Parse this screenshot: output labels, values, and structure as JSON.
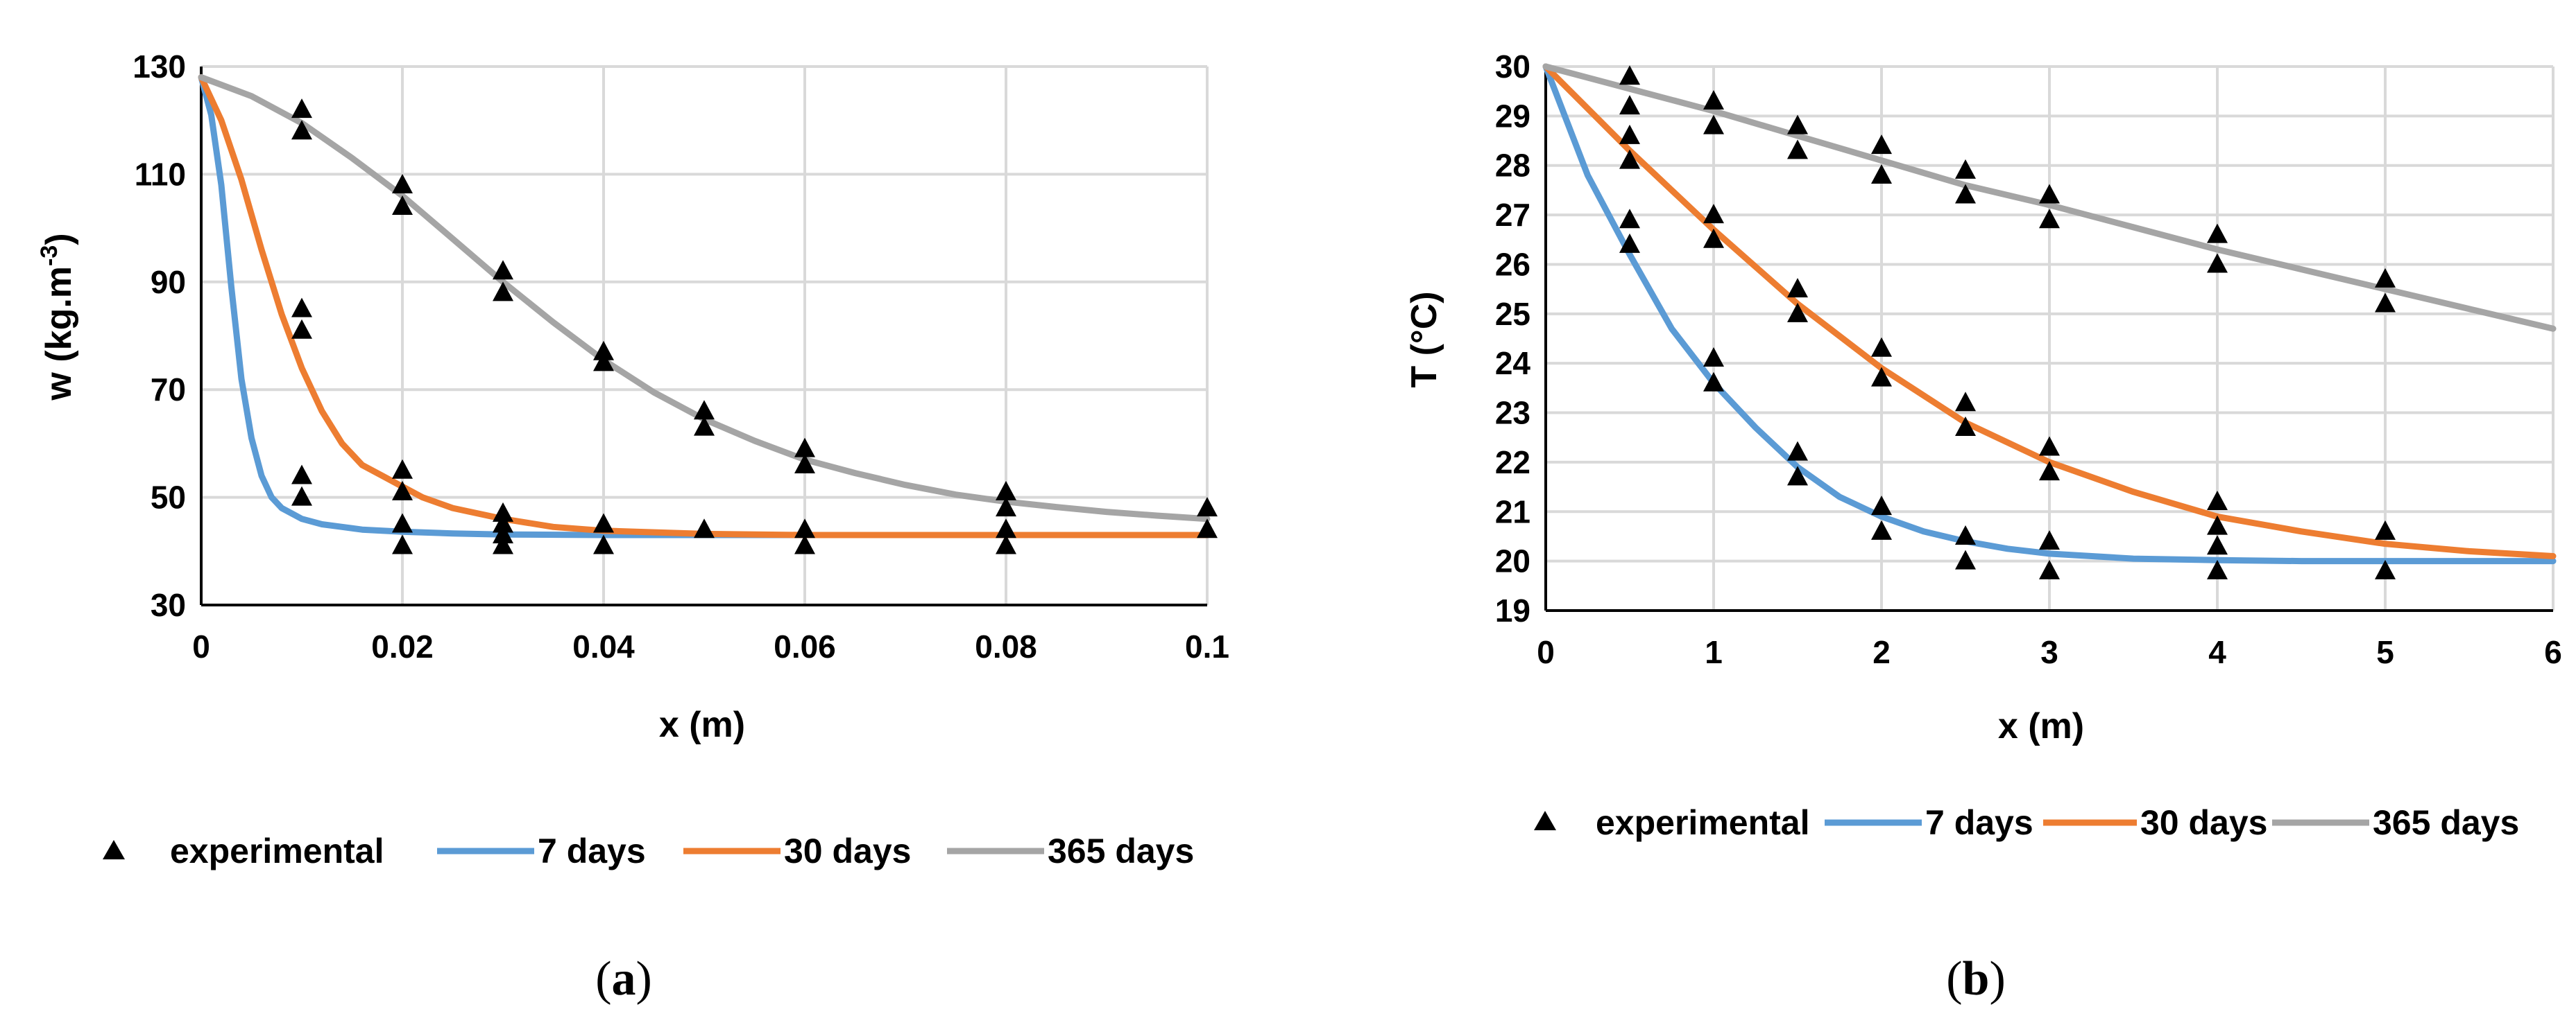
{
  "chart_data": [
    {
      "type": "line",
      "panel": "a",
      "caption": "(a)",
      "caption_letter": "a",
      "xlabel": "x (m)",
      "ylabel_main": "w (kg.m",
      "ylabel_sup": "-3",
      "ylabel_end": ")",
      "xlim": [
        0,
        0.1
      ],
      "ylim": [
        30,
        130
      ],
      "xticks": [
        0,
        0.02,
        0.04,
        0.06,
        0.08,
        0.1
      ],
      "xtick_labels": [
        "0",
        "0.02",
        "0.04",
        "0.06",
        "0.08",
        "0.1"
      ],
      "yticks": [
        30,
        50,
        70,
        90,
        110,
        130
      ],
      "ytick_labels": [
        "30",
        "50",
        "70",
        "90",
        "110",
        "130"
      ],
      "grid": true,
      "legend_position": "bottom",
      "series": [
        {
          "name": "7 days",
          "color": "#5b9bd5",
          "x": [
            0,
            0.001,
            0.002,
            0.003,
            0.004,
            0.005,
            0.006,
            0.007,
            0.008,
            0.009,
            0.01,
            0.012,
            0.014,
            0.016,
            0.018,
            0.02,
            0.025,
            0.03,
            0.04,
            0.06,
            0.1
          ],
          "y": [
            128,
            121,
            108,
            89,
            72,
            61,
            54,
            50,
            48,
            47,
            46,
            45,
            44.5,
            44,
            43.8,
            43.6,
            43.3,
            43.1,
            43,
            43,
            43
          ]
        },
        {
          "name": "30 days",
          "color": "#ed7d31",
          "x": [
            0,
            0.002,
            0.004,
            0.006,
            0.008,
            0.01,
            0.012,
            0.014,
            0.016,
            0.018,
            0.02,
            0.022,
            0.025,
            0.03,
            0.035,
            0.04,
            0.05,
            0.06,
            0.1
          ],
          "y": [
            128,
            120,
            109,
            96,
            84,
            74,
            66,
            60,
            56,
            54,
            52,
            50,
            48,
            46,
            44.5,
            43.8,
            43.2,
            43,
            43
          ]
        },
        {
          "name": "365 days",
          "color": "#a5a5a5",
          "x": [
            0,
            0.005,
            0.01,
            0.015,
            0.02,
            0.025,
            0.03,
            0.035,
            0.04,
            0.045,
            0.05,
            0.055,
            0.06,
            0.065,
            0.07,
            0.075,
            0.08,
            0.085,
            0.09,
            0.095,
            0.1
          ],
          "y": [
            128,
            124.5,
            119.5,
            113,
            106,
            98,
            90,
            82.5,
            75.5,
            69.5,
            64.5,
            60.5,
            57,
            54.5,
            52.3,
            50.5,
            49.2,
            48.2,
            47.3,
            46.6,
            46
          ]
        },
        {
          "name": "experimental",
          "color": "#000000",
          "marker": "triangle",
          "x": [
            0.01,
            0.01,
            0.01,
            0.01,
            0.01,
            0.01,
            0.02,
            0.02,
            0.02,
            0.02,
            0.02,
            0.02,
            0.03,
            0.03,
            0.03,
            0.03,
            0.03,
            0.03,
            0.04,
            0.04,
            0.04,
            0.04,
            0.05,
            0.05,
            0.05,
            0.06,
            0.06,
            0.06,
            0.06,
            0.08,
            0.08,
            0.08,
            0.08,
            0.1,
            0.1
          ],
          "y": [
            122,
            118,
            85,
            81,
            54,
            50,
            108,
            104,
            55,
            51,
            45,
            41,
            92,
            88,
            47,
            45,
            43,
            41,
            77,
            75,
            45,
            41,
            66,
            63,
            44,
            59,
            56,
            44,
            41,
            51,
            48,
            44,
            41,
            48,
            44
          ]
        }
      ]
    },
    {
      "type": "line",
      "panel": "b",
      "caption": "(b)",
      "caption_letter": "b",
      "xlabel": "x (m)",
      "ylabel_main": "T (°C)",
      "xlim": [
        0,
        6
      ],
      "ylim": [
        19,
        30
      ],
      "xticks": [
        0,
        1,
        2,
        3,
        4,
        5,
        6
      ],
      "xtick_labels": [
        "0",
        "1",
        "2",
        "3",
        "4",
        "5",
        "6"
      ],
      "yticks": [
        19,
        20,
        21,
        22,
        23,
        24,
        25,
        26,
        27,
        28,
        29,
        30
      ],
      "ytick_labels": [
        "19",
        "20",
        "21",
        "22",
        "23",
        "24",
        "25",
        "26",
        "27",
        "28",
        "29",
        "30"
      ],
      "grid": true,
      "legend_position": "bottom",
      "series": [
        {
          "name": "7 days",
          "color": "#5b9bd5",
          "x": [
            0,
            0.25,
            0.5,
            0.75,
            1.0,
            1.25,
            1.5,
            1.75,
            2.0,
            2.25,
            2.5,
            2.75,
            3.0,
            3.5,
            4.0,
            4.5,
            5.0,
            6.0
          ],
          "y": [
            30,
            27.8,
            26.2,
            24.7,
            23.6,
            22.7,
            21.9,
            21.3,
            20.9,
            20.6,
            20.4,
            20.25,
            20.15,
            20.05,
            20.02,
            20,
            20,
            20
          ]
        },
        {
          "name": "30 days",
          "color": "#ed7d31",
          "x": [
            0,
            0.5,
            1.0,
            1.5,
            2.0,
            2.5,
            3.0,
            3.5,
            4.0,
            4.5,
            5.0,
            5.5,
            6.0
          ],
          "y": [
            30,
            28.3,
            26.7,
            25.2,
            23.9,
            22.8,
            22.0,
            21.4,
            20.9,
            20.6,
            20.35,
            20.2,
            20.1
          ]
        },
        {
          "name": "365 days",
          "color": "#a5a5a5",
          "x": [
            0,
            0.5,
            1.0,
            1.5,
            2.0,
            2.5,
            3.0,
            3.5,
            4.0,
            4.5,
            5.0,
            5.5,
            6.0
          ],
          "y": [
            30,
            29.55,
            29.1,
            28.6,
            28.1,
            27.6,
            27.2,
            26.75,
            26.3,
            25.9,
            25.5,
            25.1,
            24.7
          ]
        },
        {
          "name": "experimental",
          "color": "#000000",
          "marker": "triangle",
          "x": [
            0.5,
            0.5,
            0.5,
            0.5,
            0.5,
            0.5,
            1,
            1,
            1,
            1,
            1,
            1,
            1.5,
            1.5,
            1.5,
            1.5,
            1.5,
            1.5,
            2,
            2,
            2,
            2,
            2,
            2,
            2.5,
            2.5,
            2.5,
            2.5,
            2.5,
            2.5,
            3,
            3,
            3,
            3,
            3,
            3,
            4,
            4,
            4,
            4,
            4,
            4,
            5,
            5,
            5,
            5
          ],
          "y": [
            29.8,
            29.2,
            28.6,
            28.1,
            26.9,
            26.4,
            29.3,
            28.8,
            27.0,
            26.5,
            24.1,
            23.6,
            28.8,
            28.3,
            25.5,
            25.0,
            22.2,
            21.7,
            28.4,
            27.8,
            24.3,
            23.7,
            21.1,
            20.6,
            27.9,
            27.4,
            23.2,
            22.7,
            20.5,
            20.0,
            27.4,
            26.9,
            22.3,
            21.8,
            20.4,
            19.8,
            26.6,
            26.0,
            21.2,
            20.7,
            20.3,
            19.8,
            25.7,
            25.2,
            20.6,
            19.8
          ]
        }
      ]
    }
  ],
  "legend": {
    "experimental": "experimental",
    "d7": "7 days",
    "d30": "30 days",
    "d365": "365 days"
  }
}
